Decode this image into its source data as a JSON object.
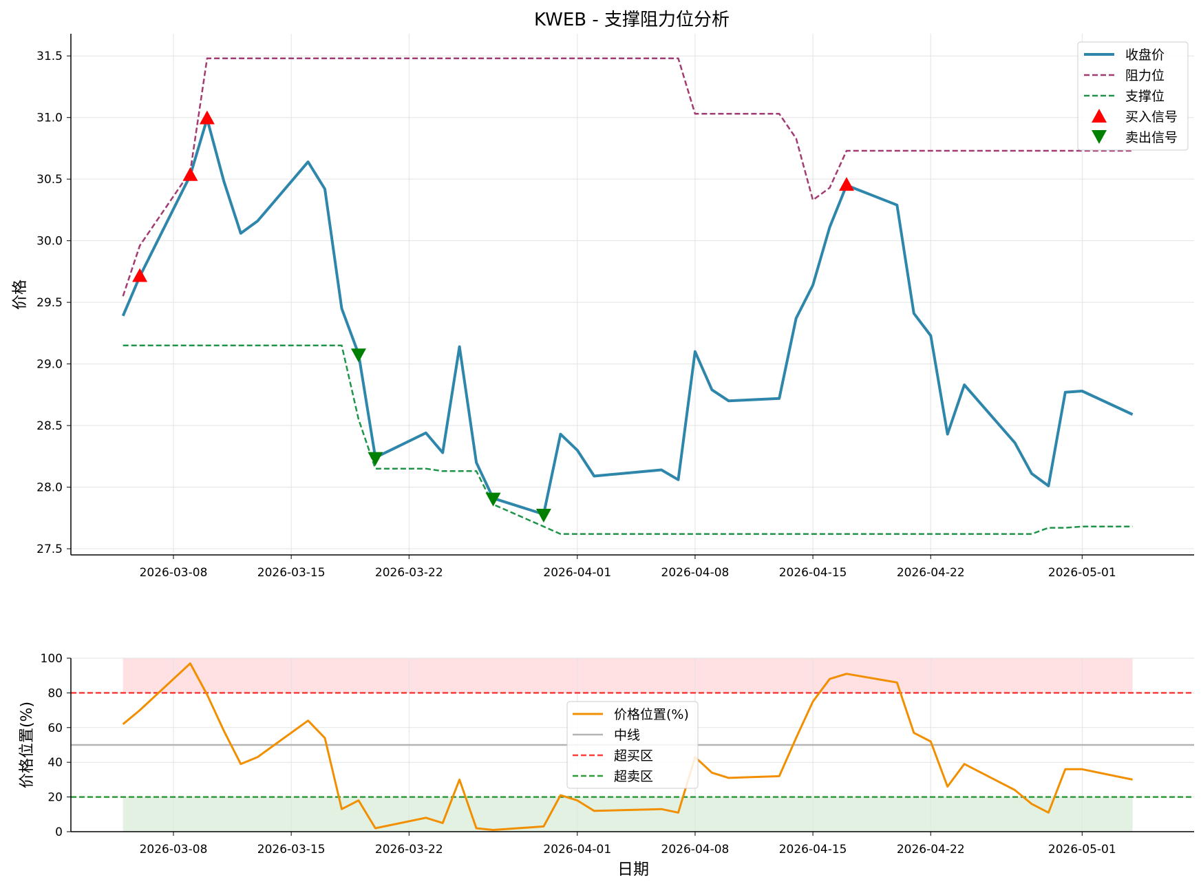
{
  "colors": {
    "close": "#2E86AB",
    "resistance": "#A23B72",
    "support": "#1E9448",
    "buy": "#FF0000",
    "sell": "#008000",
    "position": "#F18F01",
    "midline": "#B4B4B4",
    "overbought": "#FF3B3B",
    "oversold": "#2E9A3A",
    "overbought_fill": "#FFE1E3",
    "oversold_fill": "#E3F1E3"
  },
  "chart_data": [
    {
      "type": "line",
      "title": "KWEB - 支撑阻力位分析",
      "xlabel": "",
      "ylabel": "价格",
      "x_is_date": true,
      "xticks": [
        "2026-03-08",
        "2026-03-15",
        "2026-03-22",
        "2026-04-01",
        "2026-04-08",
        "2026-04-15",
        "2026-04-22",
        "2026-05-01"
      ],
      "ylim": [
        27.45,
        31.68
      ],
      "yticks": [
        27.5,
        28.0,
        28.5,
        29.0,
        29.5,
        30.0,
        30.5,
        31.0,
        31.5
      ],
      "grid": true,
      "legend_position": "top-right",
      "dates": [
        "2026-03-05",
        "2026-03-06",
        "2026-03-09",
        "2026-03-10",
        "2026-03-11",
        "2026-03-12",
        "2026-03-13",
        "2026-03-16",
        "2026-03-17",
        "2026-03-18",
        "2026-03-19",
        "2026-03-20",
        "2026-03-23",
        "2026-03-24",
        "2026-03-25",
        "2026-03-26",
        "2026-03-27",
        "2026-03-30",
        "2026-03-31",
        "2026-04-01",
        "2026-04-02",
        "2026-04-06",
        "2026-04-07",
        "2026-04-08",
        "2026-04-09",
        "2026-04-10",
        "2026-04-13",
        "2026-04-14",
        "2026-04-15",
        "2026-04-16",
        "2026-04-17",
        "2026-04-20",
        "2026-04-21",
        "2026-04-22",
        "2026-04-23",
        "2026-04-24",
        "2026-04-27",
        "2026-04-28",
        "2026-04-29",
        "2026-04-30",
        "2026-05-01",
        "2026-05-04"
      ],
      "series": [
        {
          "name": "收盘价",
          "style": "solid",
          "values": [
            29.39,
            29.71,
            30.53,
            30.99,
            30.48,
            30.06,
            30.16,
            30.64,
            30.42,
            29.45,
            29.08,
            28.24,
            28.44,
            28.28,
            29.14,
            28.2,
            27.91,
            27.78,
            28.43,
            28.3,
            28.09,
            28.14,
            28.06,
            29.1,
            28.79,
            28.7,
            28.72,
            29.37,
            29.64,
            30.11,
            30.45,
            30.29,
            29.41,
            29.23,
            28.43,
            28.83,
            28.36,
            28.11,
            28.01,
            28.77,
            28.78,
            28.59
          ]
        },
        {
          "name": "阻力位",
          "style": "dashed",
          "values": [
            29.55,
            29.96,
            30.56,
            31.48,
            31.48,
            31.48,
            31.48,
            31.48,
            31.48,
            31.48,
            31.48,
            31.48,
            31.48,
            31.48,
            31.48,
            31.48,
            31.48,
            31.48,
            31.48,
            31.48,
            31.48,
            31.48,
            31.48,
            31.03,
            31.03,
            31.03,
            31.03,
            30.83,
            30.33,
            30.43,
            30.73,
            30.73,
            30.73,
            30.73,
            30.73,
            30.73,
            30.73,
            30.73,
            30.73,
            30.73,
            30.73,
            30.73
          ]
        },
        {
          "name": "支撑位",
          "style": "dashed",
          "values": [
            29.15,
            29.15,
            29.15,
            29.15,
            29.15,
            29.15,
            29.15,
            29.15,
            29.15,
            29.15,
            28.55,
            28.15,
            28.15,
            28.13,
            28.13,
            28.13,
            27.86,
            27.68,
            27.62,
            27.62,
            27.62,
            27.62,
            27.62,
            27.62,
            27.62,
            27.62,
            27.62,
            27.62,
            27.62,
            27.62,
            27.62,
            27.62,
            27.62,
            27.62,
            27.62,
            27.62,
            27.62,
            27.62,
            27.67,
            27.67,
            27.68,
            27.68
          ]
        }
      ],
      "buy_signals": {
        "name": "买入信号",
        "points": [
          {
            "x": "2026-03-06",
            "y": 29.71
          },
          {
            "x": "2026-03-09",
            "y": 30.53
          },
          {
            "x": "2026-03-10",
            "y": 30.99
          },
          {
            "x": "2026-04-17",
            "y": 30.45
          }
        ]
      },
      "sell_signals": {
        "name": "卖出信号",
        "points": [
          {
            "x": "2026-03-19",
            "y": 29.08
          },
          {
            "x": "2026-03-20",
            "y": 28.24
          },
          {
            "x": "2026-03-27",
            "y": 27.91
          },
          {
            "x": "2026-03-30",
            "y": 27.78
          }
        ]
      }
    },
    {
      "type": "line",
      "title": "",
      "xlabel": "日期",
      "ylabel": "价格位置(%)",
      "x_is_date": true,
      "xticks": [
        "2026-03-08",
        "2026-03-15",
        "2026-03-22",
        "2026-04-01",
        "2026-04-08",
        "2026-04-15",
        "2026-04-22",
        "2026-05-01"
      ],
      "ylim": [
        0,
        100
      ],
      "yticks": [
        0,
        20,
        40,
        60,
        80,
        100
      ],
      "grid": true,
      "legend_position": "center",
      "series": [
        {
          "name": "价格位置(%)",
          "style": "solid",
          "values": [
            62,
            70,
            97,
            79,
            58,
            39,
            43,
            64,
            54,
            13,
            18,
            2,
            8,
            5,
            30,
            2,
            1,
            3,
            21,
            18,
            12,
            13,
            11,
            43,
            34,
            31,
            32,
            54,
            75,
            88,
            91,
            86,
            57,
            52,
            26,
            39,
            24,
            16,
            11,
            36,
            36,
            30
          ]
        }
      ],
      "reference_lines": [
        {
          "name": "中线",
          "value": 50,
          "style": "solid"
        },
        {
          "name": "超买区",
          "value": 80,
          "style": "dashed"
        },
        {
          "name": "超卖区",
          "value": 20,
          "style": "dashed"
        }
      ],
      "shaded_bands": [
        {
          "from": 80,
          "to": 100,
          "meaning": "overbought"
        },
        {
          "from": 0,
          "to": 20,
          "meaning": "oversold"
        }
      ]
    }
  ]
}
